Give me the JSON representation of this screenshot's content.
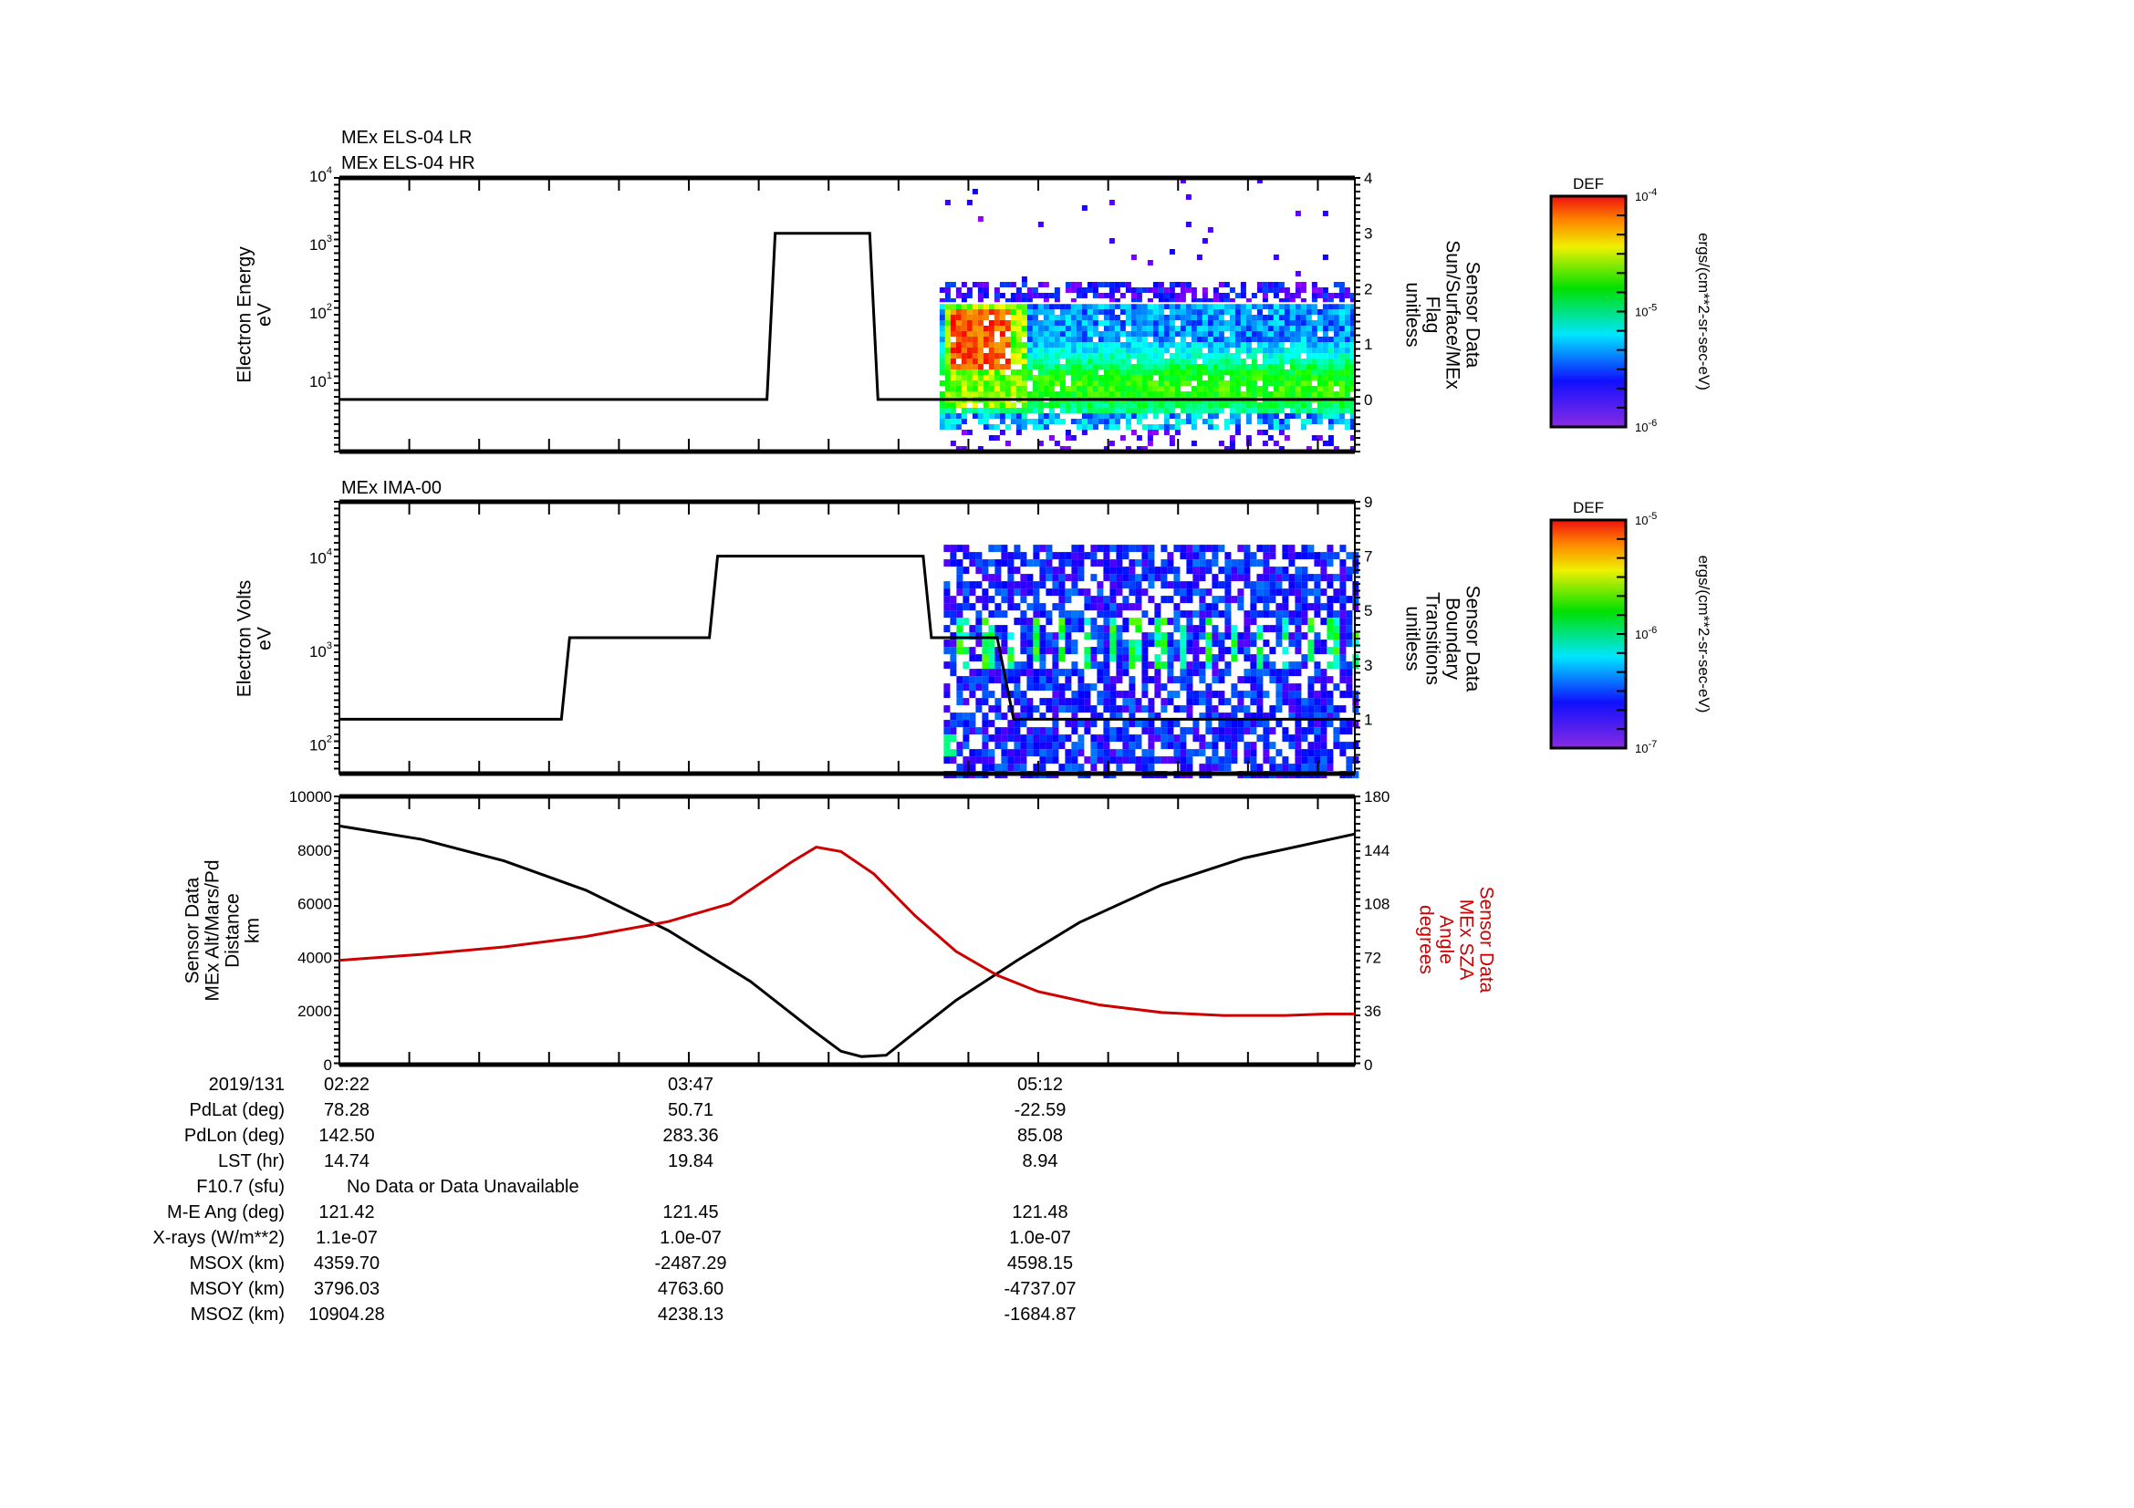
{
  "colors": {
    "line": "#000000",
    "sza": "#cc0000"
  },
  "chart_data": [
    {
      "type": "heatmap",
      "titles": [
        "MEx ELS-04 LR",
        "MEx ELS-04 HR"
      ],
      "ylabel": [
        "Electron Energy",
        "eV"
      ],
      "yscale": "log",
      "ylim": [
        1,
        10000
      ],
      "yticks": [
        {
          "base": "10",
          "exp": "4",
          "v": 4
        },
        {
          "base": "10",
          "exp": "3",
          "v": 3
        },
        {
          "base": "10",
          "exp": "2",
          "v": 2
        },
        {
          "base": "10",
          "exp": "1",
          "v": 1
        }
      ],
      "y2label": [
        "Sensor Data",
        "Sun/Surface/MEx",
        "Flag",
        "unitless"
      ],
      "y2lim": [
        -0.94,
        4
      ],
      "y2ticks": [
        "4",
        "3",
        "2",
        "1",
        "0"
      ],
      "xlim_minutes": [
        0,
        247
      ],
      "heatmap": {
        "t_start": 146,
        "t_end": 247,
        "hot_spot": {
          "t": [
            148,
            162
          ],
          "log_e": [
            1.2,
            2.1
          ]
        },
        "main_band_log_e": [
          0.6,
          2.17
        ],
        "cutoff_log_e": 2.17
      },
      "line": {
        "name": "Sun/Surface/MEx Flag",
        "x": [
          0,
          104,
          106,
          129,
          131,
          247
        ],
        "y": [
          0,
          0,
          3,
          3,
          0,
          0
        ]
      },
      "colorbar": {
        "title": "DEF",
        "ticks": [
          {
            "base": "10",
            "exp": "-4"
          },
          {
            "base": "10",
            "exp": "-5"
          },
          {
            "base": "10",
            "exp": "-6"
          }
        ],
        "units": "ergs/(cm**2-sr-sec-eV)"
      }
    },
    {
      "type": "heatmap",
      "titles": [
        "MEx IMA-00"
      ],
      "ylabel": [
        "Electron Volts",
        "eV"
      ],
      "yscale": "log",
      "ylim_log": [
        1.71,
        4.62
      ],
      "yticks": [
        {
          "base": "10",
          "exp": "4",
          "v": 4
        },
        {
          "base": "10",
          "exp": "3",
          "v": 3
        },
        {
          "base": "10",
          "exp": "2",
          "v": 2
        }
      ],
      "y2label": [
        "Sensor Data",
        "Boundary",
        "Transitions",
        "unitless"
      ],
      "y2lim": [
        -1,
        9
      ],
      "y2ticks": [
        "9",
        "7",
        "5",
        "3",
        "1"
      ],
      "xlim_minutes": [
        0,
        247
      ],
      "heatmap": {
        "t_start": 147,
        "t_end": 247,
        "log_e": [
          1.75,
          4.16
        ],
        "streak_log_e": [
          2.9,
          3.4
        ]
      },
      "line": {
        "name": "Boundary Transitions",
        "x": [
          0,
          54,
          56,
          90,
          92,
          142,
          144,
          160,
          164,
          247
        ],
        "y": [
          1,
          1,
          4,
          4,
          7,
          7,
          4,
          4,
          1,
          1
        ]
      },
      "colorbar": {
        "title": "DEF",
        "ticks": [
          {
            "base": "10",
            "exp": "-5"
          },
          {
            "base": "10",
            "exp": "-6"
          },
          {
            "base": "10",
            "exp": "-7"
          }
        ],
        "units": "ergs/(cm**2-sr-sec-eV)"
      }
    },
    {
      "type": "line",
      "ylabel": [
        "Sensor Data",
        "MEx Alt/Mars/Pd",
        "Distance",
        "km"
      ],
      "ylim": [
        0,
        10000
      ],
      "yticks": [
        "10000",
        "8000",
        "6000",
        "4000",
        "2000",
        "0"
      ],
      "y2label": [
        "Sensor Data",
        "MEx SZA",
        "Angle",
        "degrees"
      ],
      "y2lim": [
        0,
        180
      ],
      "y2ticks": [
        "180",
        "144",
        "108",
        "72",
        "36",
        "0"
      ],
      "xlim_minutes": [
        0,
        247
      ],
      "series": [
        {
          "name": "MEx Alt/Mars/Pd Distance (km)",
          "axis": "left",
          "x": [
            0,
            20,
            40,
            60,
            80,
            100,
            115,
            122,
            127,
            133,
            140,
            150,
            165,
            180,
            200,
            220,
            247
          ],
          "y": [
            8900,
            8400,
            7600,
            6500,
            5000,
            3100,
            1300,
            500,
            300,
            350,
            1200,
            2400,
            3900,
            5300,
            6700,
            7700,
            8600
          ]
        },
        {
          "name": "MEx SZA Angle (degrees)",
          "axis": "right",
          "x": [
            0,
            20,
            40,
            60,
            80,
            95,
            110,
            116,
            122,
            130,
            140,
            150,
            160,
            170,
            185,
            200,
            215,
            230,
            240,
            247
          ],
          "y": [
            70,
            74,
            79,
            86,
            96,
            108,
            136,
            146,
            143,
            128,
            100,
            76,
            60,
            49,
            40,
            35,
            33,
            33,
            34,
            34
          ]
        }
      ]
    }
  ],
  "table": {
    "time_labels": [
      "2019/131",
      "02:22",
      "03:47",
      "05:12"
    ],
    "rows": [
      {
        "label": "PdLat (deg)",
        "values": [
          "78.28",
          "50.71",
          "-22.59"
        ]
      },
      {
        "label": "PdLon (deg)",
        "values": [
          "142.50",
          "283.36",
          "85.08"
        ]
      },
      {
        "label": "LST (hr)",
        "values": [
          "14.74",
          "19.84",
          "8.94"
        ]
      },
      {
        "label": "F10.7 (sfu)",
        "values": [
          "No Data or Data Unavailable"
        ]
      },
      {
        "label": "M-E Ang (deg)",
        "values": [
          "121.42",
          "121.45",
          "121.48"
        ]
      },
      {
        "label": "X-rays (W/m**2)",
        "values": [
          "1.1e-07",
          "1.0e-07",
          "1.0e-07"
        ]
      },
      {
        "label": "MSOX (km)",
        "values": [
          "4359.70",
          "-2487.29",
          "4598.15"
        ]
      },
      {
        "label": "MSOY (km)",
        "values": [
          "3796.03",
          "4763.60",
          "-4737.07"
        ]
      },
      {
        "label": "MSOZ (km)",
        "values": [
          "10904.28",
          "4238.13",
          "-1684.87"
        ]
      }
    ]
  }
}
